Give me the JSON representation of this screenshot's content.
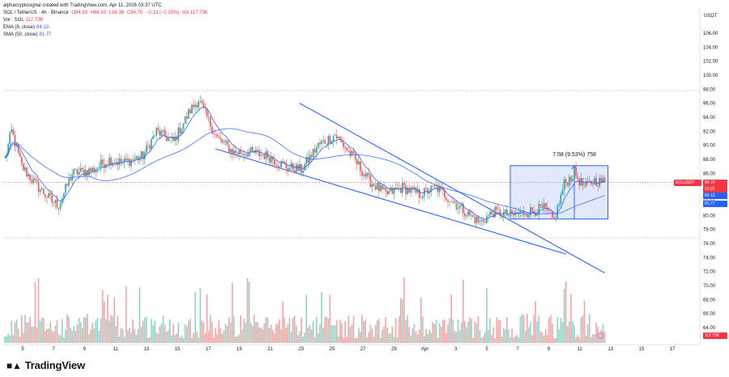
{
  "attribution": "alphacryptosignal created with TradingView.com, Apr 11, 2026 03:37 UTC",
  "symbol_line": {
    "pair": "SOL / TetherUS · 4h · Binance",
    "open": "O84.83",
    "high": "H84.93",
    "low": "L84.38",
    "close": "C84.70",
    "change": "−0.13 (−0.15%)",
    "vol": "Vol 117.73K"
  },
  "legend": [
    {
      "label": "Vol · SOL",
      "value": "117.73K",
      "color": "#f23645"
    },
    {
      "label": "EMA (9, close)",
      "value": "84.13",
      "color": "#2962ff"
    },
    {
      "label": "SMA (50, close)",
      "value": "81.77",
      "color": "#2962ff"
    }
  ],
  "brand": "TradingView",
  "currency": "USDT",
  "measure_label": "7.58 (9.53%) 758",
  "badges": {
    "symbol": "SOLUSDT",
    "price": "84.70",
    "countdown": "22:31",
    "ema": "84.13",
    "sma": "81.77",
    "volume": "117.73K"
  },
  "colors": {
    "up": "#26a69a",
    "down": "#ef5350",
    "vol_up": "#8fd3c8",
    "vol_down": "#f5a3a3",
    "accent": "#2962ff",
    "box": "#d6e0ff"
  },
  "chart_data": {
    "type": "candlestick",
    "title": "",
    "y_ticks": [
      "106.00",
      "104.00",
      "102.00",
      "100.00",
      "98.00",
      "96.00",
      "94.00",
      "92.00",
      "90.00",
      "88.00",
      "86.00",
      "84.00",
      "82.00",
      "80.00",
      "78.00",
      "76.00",
      "74.00",
      "72.00",
      "70.00",
      "68.00",
      "66.00",
      "64.00"
    ],
    "ylim": [
      62.5,
      107.5
    ],
    "x_ticks": [
      "5",
      "7",
      "9",
      "11",
      "13",
      "15",
      "17",
      "19",
      "21",
      "23",
      "25",
      "27",
      "29",
      "Apr",
      "3",
      "5",
      "7",
      "9",
      "11",
      "13",
      "15",
      "17"
    ],
    "close_anchors": [
      [
        0,
        88
      ],
      [
        4,
        92
      ],
      [
        10,
        87
      ],
      [
        18,
        84.5
      ],
      [
        28,
        82
      ],
      [
        32,
        81.5
      ],
      [
        40,
        86
      ],
      [
        52,
        86.5
      ],
      [
        62,
        88
      ],
      [
        70,
        87.5
      ],
      [
        82,
        88.5
      ],
      [
        90,
        92
      ],
      [
        100,
        90.5
      ],
      [
        110,
        95
      ],
      [
        115,
        96.5
      ],
      [
        126,
        91
      ],
      [
        136,
        89
      ],
      [
        146,
        89
      ],
      [
        156,
        88.5
      ],
      [
        166,
        87
      ],
      [
        176,
        86.5
      ],
      [
        186,
        90
      ],
      [
        196,
        91.5
      ],
      [
        206,
        88.5
      ],
      [
        216,
        85
      ],
      [
        226,
        83
      ],
      [
        236,
        84
      ],
      [
        246,
        83
      ],
      [
        256,
        84
      ],
      [
        266,
        82
      ],
      [
        276,
        80
      ],
      [
        282,
        79
      ],
      [
        290,
        80.5
      ],
      [
        300,
        80
      ],
      [
        310,
        80.5
      ],
      [
        320,
        81
      ],
      [
        326,
        79.2
      ],
      [
        332,
        84.5
      ],
      [
        338,
        86
      ],
      [
        344,
        84
      ],
      [
        350,
        85
      ],
      [
        356,
        84.7
      ]
    ],
    "ema9_last": 84.13,
    "sma50_last": 81.77,
    "last_price": 84.7,
    "h_lines": [
      97.8,
      76.8
    ],
    "measure_box": {
      "from": 79.5,
      "to": 87.1,
      "change": 7.58
    },
    "trendlines": "two descending blue lines forming a falling wedge",
    "volume_axis_label": "117.73K"
  }
}
